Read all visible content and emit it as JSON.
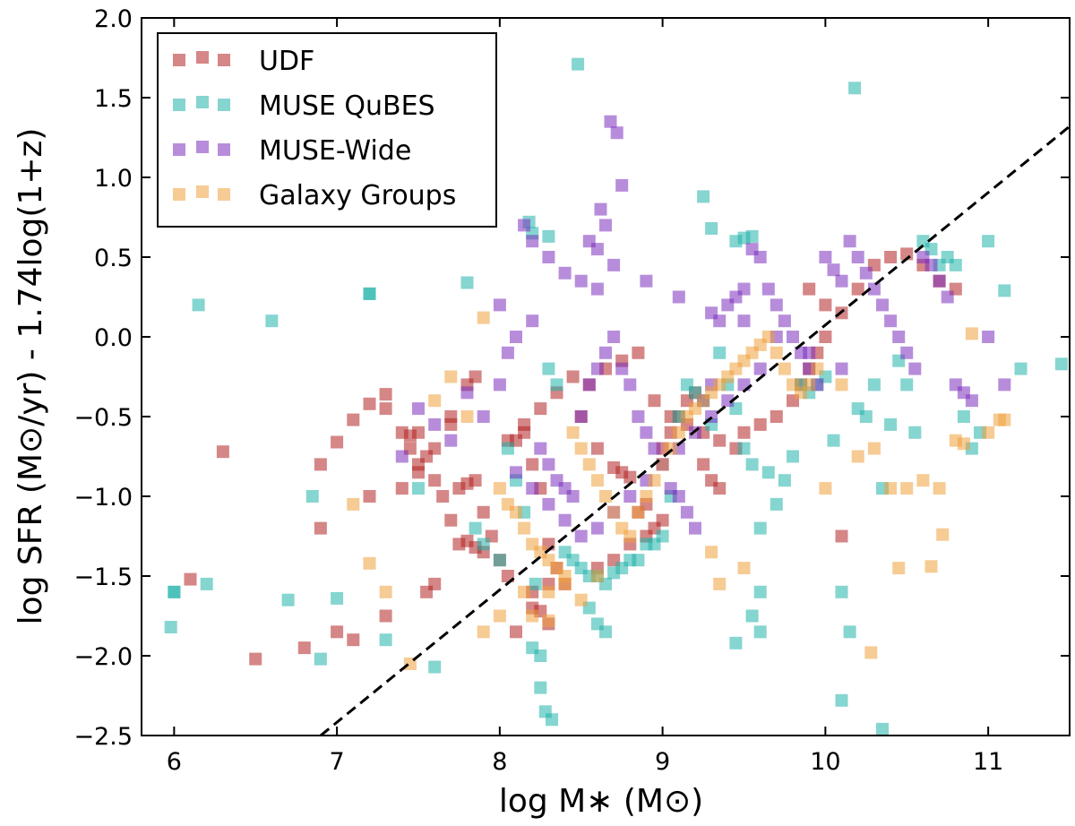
{
  "chart_data": {
    "type": "scatter",
    "xlabel": "log M∗ (M⊙)",
    "ylabel": "log SFR (M⊙/yr) - 1.74log(1+z)",
    "xlim": [
      5.8,
      11.5
    ],
    "ylim": [
      -2.5,
      2.0
    ],
    "xticks": [
      6,
      7,
      8,
      9,
      10,
      11
    ],
    "xtick_labels": [
      "6",
      "7",
      "8",
      "9",
      "10",
      "11"
    ],
    "yticks": [
      -2.5,
      -2.0,
      -1.5,
      -1.0,
      -0.5,
      0.0,
      0.5,
      1.0,
      1.5,
      2.0
    ],
    "ytick_labels": [
      "−2.5",
      "−2.0",
      "−1.5",
      "−1.0",
      "−0.5",
      "0.0",
      "0.5",
      "1.0",
      "1.5",
      "2.0"
    ],
    "legend_position": "top-left",
    "fit_line": {
      "style": "dashed",
      "color": "#000000",
      "x": [
        6.9,
        11.5
      ],
      "y": [
        -2.5,
        1.32
      ]
    },
    "series": [
      {
        "name": "UDF",
        "color": "#b22222",
        "marker": "square",
        "x": [
          6.1,
          6.3,
          6.5,
          6.9,
          7.0,
          7.1,
          7.2,
          7.3,
          7.4,
          7.45,
          7.5,
          7.6,
          7.65,
          7.7,
          7.75,
          7.8,
          7.85,
          7.9,
          7.6,
          7.55,
          7.3,
          7.1,
          7.0,
          6.8,
          6.9,
          7.2,
          7.4,
          7.5,
          7.6,
          7.7,
          7.75,
          7.8,
          7.85,
          7.9,
          7.95,
          8.0,
          8.05,
          8.1,
          8.15,
          8.2,
          8.25,
          8.3,
          8.35,
          8.4,
          8.2,
          8.25,
          8.3,
          8.1,
          8.2,
          8.3,
          8.5,
          8.6,
          8.7,
          8.75,
          8.8,
          8.85,
          8.9,
          8.95,
          9.0,
          9.05,
          9.1,
          9.15,
          9.2,
          9.25,
          9.3,
          9.35,
          9.0,
          8.9,
          8.8,
          8.7,
          8.6,
          9.5,
          9.6,
          9.7,
          9.8,
          9.85,
          9.9,
          9.95,
          10.0,
          10.1,
          10.2,
          10.3,
          10.4,
          10.5,
          10.6,
          10.7,
          10.8,
          9.9,
          10.0,
          10.1,
          7.3,
          7.5,
          7.45,
          7.55,
          7.7,
          7.8,
          7.85,
          8.05,
          8.15,
          8.25,
          8.35,
          8.45,
          8.55,
          8.65,
          8.75,
          8.85,
          8.95,
          9.05,
          9.15,
          9.25,
          9.35,
          9.45
        ],
        "y": [
          -1.52,
          -0.72,
          -2.02,
          -0.8,
          -0.66,
          -0.52,
          -0.42,
          -0.36,
          -0.6,
          -0.62,
          -0.8,
          -0.9,
          -1.0,
          -1.15,
          -1.3,
          -1.28,
          -1.32,
          -1.35,
          -1.55,
          -1.6,
          -1.75,
          -1.9,
          -1.85,
          -1.95,
          -1.2,
          -1.0,
          -0.95,
          -0.85,
          -0.7,
          -0.55,
          -0.95,
          -0.92,
          -0.9,
          -1.1,
          -1.25,
          -1.4,
          -1.5,
          -0.65,
          -0.6,
          -0.8,
          -0.95,
          -1.3,
          -1.45,
          -1.55,
          -1.7,
          -1.72,
          -1.8,
          -1.85,
          -1.6,
          -1.55,
          -0.5,
          -0.7,
          -0.82,
          -0.85,
          -0.88,
          -1.1,
          -1.05,
          -1.2,
          -0.7,
          -0.6,
          -0.5,
          -0.4,
          -0.35,
          -0.8,
          -0.9,
          -0.95,
          -1.15,
          -1.25,
          -1.3,
          -1.4,
          -1.45,
          -0.6,
          -0.55,
          -0.5,
          -0.4,
          -0.3,
          -0.2,
          -0.1,
          0.0,
          0.15,
          0.3,
          0.45,
          0.5,
          0.52,
          0.45,
          0.35,
          0.3,
          0.3,
          0.2,
          -1.25,
          -0.45,
          -0.6,
          -0.7,
          -0.75,
          -0.5,
          -0.3,
          -0.25,
          -0.65,
          -0.55,
          -0.45,
          -0.35,
          -0.25,
          -0.3,
          -0.2,
          -0.15,
          -0.1,
          -0.4,
          -0.5,
          -0.55,
          -0.6,
          -0.65,
          -0.7
        ]
      },
      {
        "name": "MUSE QuBES",
        "color": "#20b2aa",
        "marker": "square",
        "x": [
          6.0,
          6.2,
          6.6,
          6.7,
          6.85,
          6.9,
          7.0,
          7.2,
          7.3,
          7.5,
          7.6,
          7.8,
          7.85,
          7.9,
          8.0,
          8.05,
          8.1,
          8.15,
          8.2,
          8.25,
          8.3,
          8.35,
          8.4,
          8.45,
          8.5,
          8.55,
          8.6,
          8.65,
          8.7,
          8.75,
          8.8,
          8.85,
          8.9,
          8.95,
          9.0,
          9.05,
          9.1,
          9.15,
          9.2,
          9.25,
          9.3,
          9.35,
          9.4,
          9.45,
          9.5,
          9.55,
          9.6,
          9.65,
          9.7,
          9.75,
          9.8,
          9.85,
          9.9,
          9.95,
          10.0,
          10.05,
          10.1,
          10.15,
          10.2,
          10.25,
          10.3,
          10.35,
          10.4,
          10.45,
          10.5,
          10.55,
          10.6,
          10.65,
          10.7,
          10.75,
          10.8,
          10.85,
          10.9,
          10.95,
          11.0,
          11.1,
          11.2,
          11.45,
          8.48,
          8.18,
          8.3,
          8.22,
          8.25,
          8.28,
          8.32,
          8.55,
          8.6,
          8.65,
          9.25,
          9.3,
          9.45,
          9.5,
          9.55,
          9.6,
          10.1,
          10.35,
          9.45,
          9.55,
          9.6,
          10.18,
          6.0,
          5.98,
          7.2,
          6.15,
          8.2
        ],
        "y": [
          -1.6,
          -1.55,
          0.1,
          -1.65,
          -1.0,
          -2.02,
          -1.64,
          0.27,
          -1.9,
          -0.95,
          -2.07,
          0.34,
          -1.2,
          -1.3,
          -1.4,
          -0.7,
          -0.9,
          -1.1,
          -1.95,
          -2.0,
          -0.2,
          -0.3,
          -1.35,
          -1.4,
          -1.45,
          -1.5,
          -1.5,
          -1.55,
          -1.48,
          -1.45,
          -1.4,
          -1.4,
          -1.3,
          -1.3,
          -1.25,
          -1.0,
          -0.5,
          -0.3,
          -0.35,
          -0.4,
          -0.55,
          -0.1,
          -0.3,
          -0.45,
          -0.7,
          -0.8,
          -1.2,
          -0.85,
          -1.05,
          -0.9,
          -0.75,
          -0.3,
          -0.35,
          -0.3,
          -0.25,
          -0.65,
          -1.6,
          -1.85,
          -0.45,
          -0.5,
          -0.3,
          -0.95,
          -0.55,
          -0.15,
          -0.3,
          -0.6,
          0.6,
          0.55,
          0.45,
          0.5,
          0.45,
          -0.5,
          -0.7,
          -0.6,
          0.6,
          0.29,
          -0.2,
          -0.17,
          1.71,
          0.72,
          0.63,
          -1.55,
          -2.2,
          -2.35,
          -2.4,
          -1.7,
          -1.8,
          -1.85,
          0.88,
          0.68,
          0.6,
          0.62,
          0.63,
          -1.6,
          -2.28,
          -2.46,
          -1.92,
          -1.75,
          -1.85,
          1.56,
          -1.6,
          -1.82,
          0.27,
          0.2,
          0.65
        ]
      },
      {
        "name": "MUSE-Wide",
        "color": "#7b2fbe",
        "marker": "square",
        "x": [
          7.4,
          7.8,
          7.9,
          8.0,
          8.05,
          8.1,
          8.15,
          8.2,
          8.25,
          8.3,
          8.35,
          8.4,
          8.45,
          8.5,
          8.55,
          8.6,
          8.65,
          8.7,
          8.75,
          8.8,
          8.85,
          8.9,
          8.95,
          9.0,
          9.05,
          9.1,
          9.15,
          9.2,
          9.25,
          9.3,
          9.35,
          9.4,
          9.45,
          9.5,
          9.55,
          9.6,
          9.65,
          9.7,
          9.75,
          9.8,
          9.85,
          9.9,
          9.95,
          10.0,
          10.05,
          10.1,
          10.15,
          10.2,
          10.25,
          10.3,
          10.35,
          10.4,
          10.45,
          10.5,
          10.55,
          10.6,
          10.65,
          10.7,
          10.75,
          10.8,
          10.85,
          10.9,
          11.0,
          11.1,
          8.0,
          8.2,
          8.3,
          8.4,
          8.5,
          8.6,
          8.68,
          8.72,
          8.75,
          8.62,
          8.65,
          8.55,
          8.6,
          8.7,
          8.9,
          9.1,
          9.3,
          9.5,
          9.7,
          9.9,
          10.1,
          7.5,
          7.6,
          7.7,
          8.1,
          8.2,
          8.3,
          8.4,
          8.5,
          8.6,
          8.7,
          8.8,
          8.9,
          9.0,
          9.1,
          9.2,
          9.3,
          9.4,
          9.5,
          9.6
        ],
        "y": [
          -0.75,
          -0.35,
          -0.5,
          -0.3,
          -0.1,
          0.0,
          0.7,
          0.1,
          -0.7,
          -0.8,
          -0.9,
          -0.95,
          -1.0,
          -0.5,
          -0.3,
          -0.2,
          -0.1,
          0.0,
          -0.2,
          -0.3,
          -0.5,
          -0.6,
          -0.7,
          -0.8,
          -0.95,
          -1.0,
          -1.1,
          -1.2,
          -0.4,
          -0.3,
          0.1,
          0.2,
          0.25,
          0.3,
          0.55,
          0.5,
          0.3,
          0.2,
          0.1,
          0.0,
          -0.1,
          -0.2,
          -0.3,
          0.5,
          0.42,
          0.35,
          0.6,
          0.5,
          0.4,
          0.3,
          0.2,
          0.1,
          0.0,
          -0.1,
          -0.2,
          0.5,
          0.45,
          0.35,
          0.25,
          -0.3,
          -0.35,
          -0.4,
          0.0,
          -0.3,
          0.2,
          0.6,
          0.5,
          0.4,
          0.35,
          0.3,
          1.35,
          1.28,
          0.95,
          0.8,
          0.7,
          0.6,
          0.55,
          0.45,
          0.35,
          0.25,
          0.15,
          0.1,
          0.0,
          -0.1,
          -0.2,
          -0.45,
          -0.55,
          -0.65,
          -0.85,
          -0.95,
          -1.05,
          -1.15,
          -1.25,
          -1.2,
          -1.1,
          -1.0,
          -0.9,
          -0.8,
          -0.7,
          -0.6,
          -0.5,
          -0.4,
          -0.3,
          -0.2
        ]
      },
      {
        "name": "Galaxy Groups",
        "color": "#eea03c",
        "marker": "square",
        "x": [
          7.1,
          7.2,
          7.3,
          7.45,
          7.6,
          7.7,
          7.8,
          7.9,
          8.0,
          8.05,
          8.1,
          8.15,
          8.2,
          8.25,
          8.3,
          8.35,
          8.4,
          8.45,
          8.5,
          8.55,
          8.6,
          8.65,
          8.7,
          8.75,
          8.8,
          8.85,
          8.9,
          8.95,
          9.0,
          9.05,
          9.1,
          9.15,
          9.2,
          9.25,
          9.3,
          9.35,
          9.4,
          9.45,
          9.5,
          9.55,
          9.6,
          9.65,
          9.7,
          9.75,
          9.8,
          9.85,
          9.9,
          9.95,
          10.0,
          10.1,
          10.2,
          10.3,
          10.4,
          10.5,
          10.6,
          10.7,
          10.8,
          10.9,
          11.0,
          11.1,
          7.9,
          8.2,
          8.3,
          8.4,
          8.5,
          9.3,
          9.35,
          9.5,
          10.28,
          10.45,
          10.65,
          10.72,
          11.07,
          10.85,
          8.0,
          8.15,
          8.3,
          8.6
        ],
        "y": [
          -1.05,
          -1.42,
          -1.6,
          -2.05,
          -0.4,
          -0.25,
          -0.5,
          0.12,
          -0.95,
          -1.05,
          -1.1,
          -1.2,
          -1.3,
          -1.35,
          -1.4,
          -1.45,
          -1.5,
          -0.6,
          -0.7,
          -0.8,
          -0.9,
          -1.0,
          -1.1,
          -1.2,
          -1.25,
          -1.1,
          -1.0,
          -0.9,
          -0.8,
          -0.7,
          -0.6,
          -0.5,
          -0.45,
          -0.4,
          -0.35,
          -0.3,
          -0.25,
          -0.2,
          -0.15,
          -0.1,
          -0.05,
          0.0,
          -0.1,
          -0.2,
          -0.3,
          -0.35,
          -0.3,
          -0.2,
          -0.95,
          -0.3,
          -0.75,
          -0.7,
          -0.95,
          -0.95,
          -0.9,
          -0.95,
          -0.65,
          0.02,
          -0.6,
          -0.52,
          -1.85,
          -1.75,
          -1.6,
          -1.55,
          -1.65,
          -1.35,
          -1.55,
          -1.45,
          -1.98,
          -1.45,
          -1.44,
          -1.24,
          -0.52,
          -0.67,
          -1.75,
          -1.6,
          -1.78,
          -1.5
        ]
      }
    ]
  }
}
